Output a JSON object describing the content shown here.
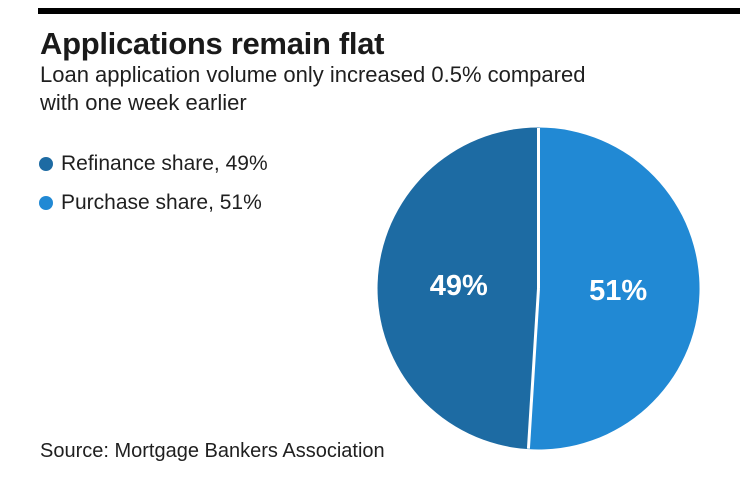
{
  "accent_bar": {
    "color": "#000000"
  },
  "header": {
    "title": "Applications remain flat",
    "subtitle_lines": [
      "Loan application volume only increased 0.5% compared",
      "with one week earlier"
    ]
  },
  "legend": {
    "items": [
      {
        "label": "Refinance share, 49%",
        "color": "#1d6ba3"
      },
      {
        "label": "Purchase share, 51%",
        "color": "#2189d4"
      }
    ]
  },
  "source": {
    "text": "Source: Mortgage Bankers Association"
  },
  "chart_data": {
    "type": "pie",
    "title": "Applications remain flat",
    "subtitle": "Loan application volume only increased 0.5% compared with one week earlier",
    "slices": [
      {
        "name": "Refinance share",
        "value": 49,
        "label": "49%",
        "color": "#1d6ba3"
      },
      {
        "name": "Purchase share",
        "value": 51,
        "label": "51%",
        "color": "#2189d4"
      }
    ],
    "start_angle_deg": 0,
    "direction": "first-slice-counterclockwise-from-top",
    "label_color": "#ffffff",
    "divider_color": "#ffffff",
    "legend_position": "left",
    "source": "Source: Mortgage Bankers Association"
  }
}
